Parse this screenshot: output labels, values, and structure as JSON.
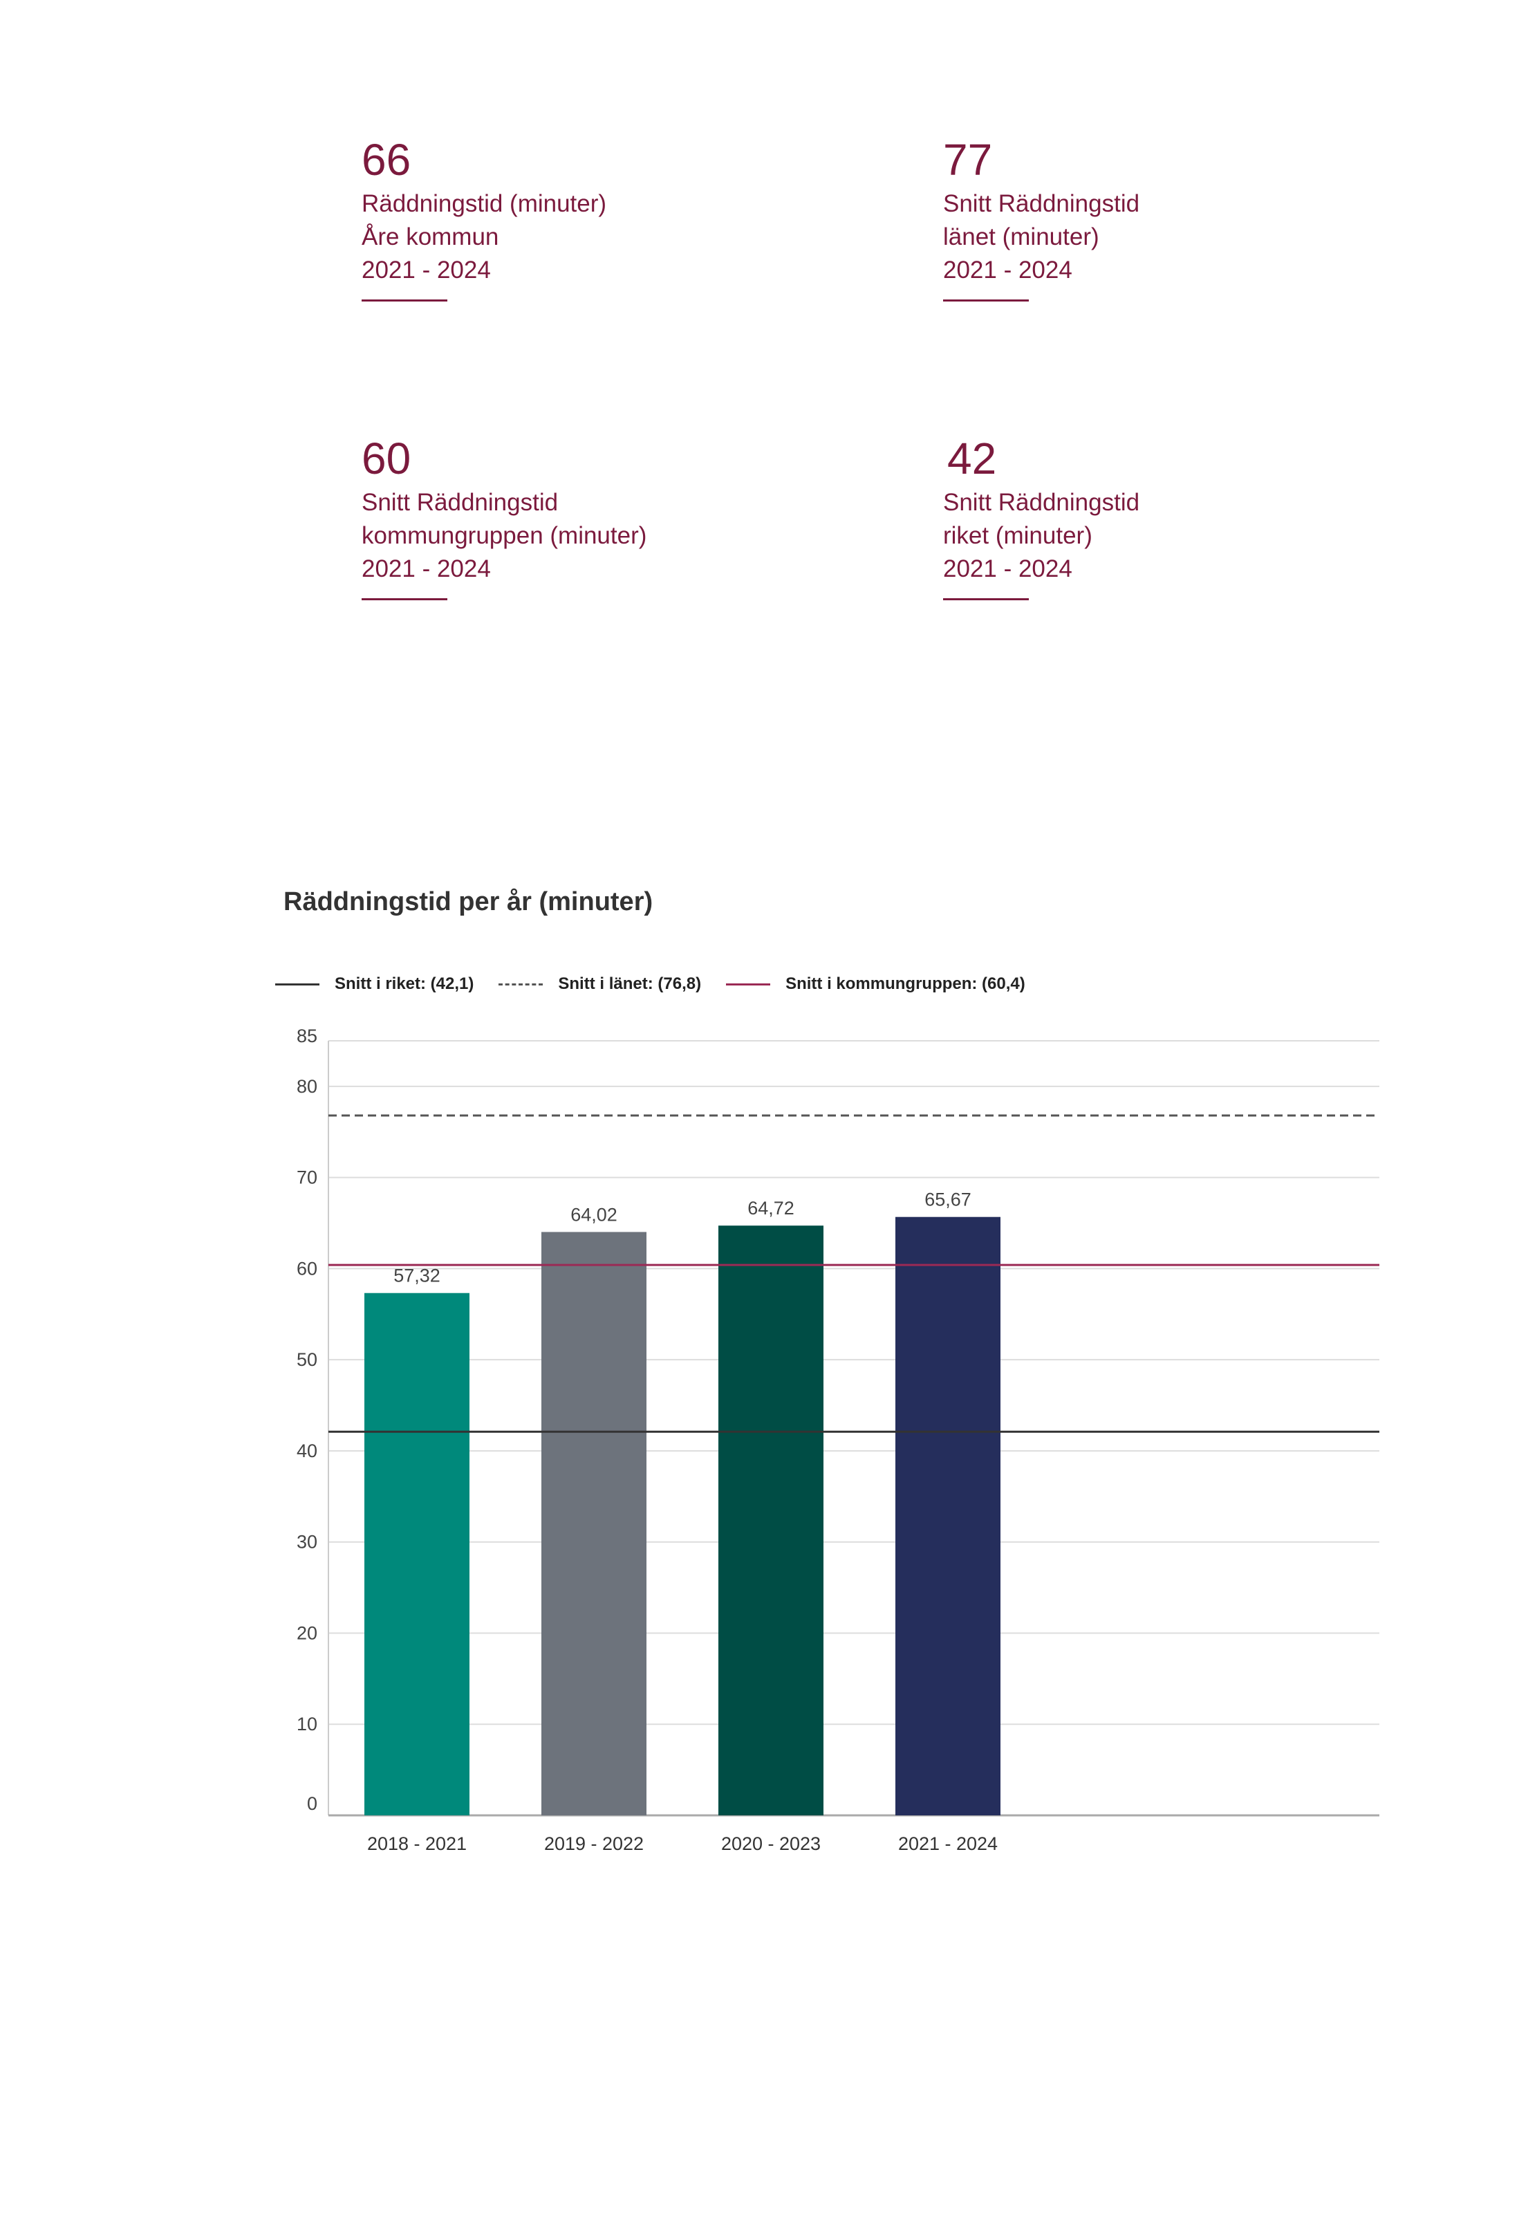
{
  "kpis": [
    {
      "value": "66",
      "lines": [
        "Räddningstid (minuter)",
        "Åre kommun",
        "2021 - 2024"
      ]
    },
    {
      "value": "77",
      "lines": [
        "Snitt Räddningstid",
        "länet (minuter)",
        "2021 - 2024"
      ]
    },
    {
      "value": "60",
      "lines": [
        "Snitt Räddningstid",
        "kommungruppen (minuter)",
        "2021 - 2024"
      ]
    },
    {
      "value": "42",
      "lines": [
        "Snitt Räddningstid",
        "riket (minuter)",
        "2021 - 2024"
      ]
    }
  ],
  "legend": {
    "riket": "Snitt i riket: (42,1)",
    "lanet": "Snitt i länet: (76,8)",
    "kommungruppen": "Snitt i kommungruppen: (60,4)"
  },
  "colors": {
    "accent": "#7b1a3d",
    "bars": [
      "#00897b",
      "#6d737c",
      "#004d45",
      "#252e5c"
    ],
    "ref_riket": "#333333",
    "ref_lanet": "#555555",
    "ref_kommungruppen": "#9b2a55",
    "grid": "#dddddd"
  },
  "chart_data": {
    "type": "bar",
    "title": "Räddningstid per år (minuter)",
    "categories": [
      "2018 - 2021",
      "2019 - 2022",
      "2020 - 2023",
      "2021 - 2024"
    ],
    "values": [
      57.32,
      64.02,
      64.72,
      65.67
    ],
    "value_labels": [
      "57,32",
      "64,02",
      "64,72",
      "65,67"
    ],
    "yticks": [
      0,
      10,
      20,
      30,
      40,
      50,
      60,
      70,
      80,
      85
    ],
    "ylim": [
      0,
      85
    ],
    "reference_lines": [
      {
        "name": "Snitt i riket",
        "value": 42.1,
        "style": "solid"
      },
      {
        "name": "Snitt i länet",
        "value": 76.8,
        "style": "dashed"
      },
      {
        "name": "Snitt i kommungruppen",
        "value": 60.4,
        "style": "solid"
      }
    ],
    "grid": true,
    "legend_position": "top"
  }
}
